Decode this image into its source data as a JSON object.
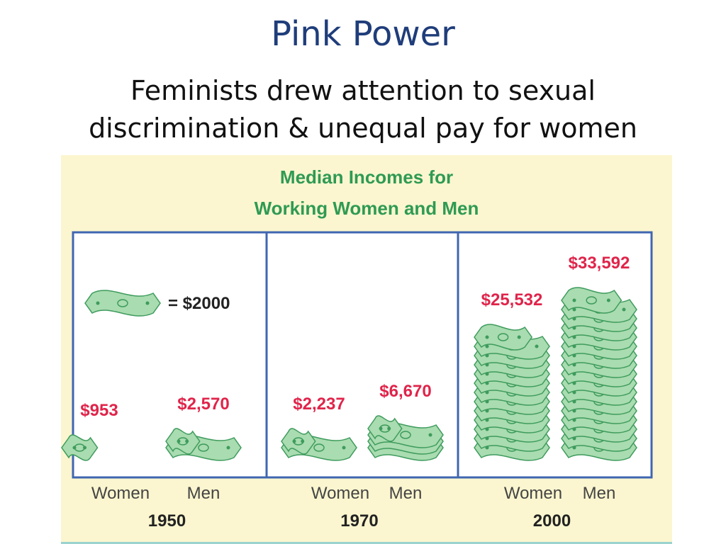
{
  "slide": {
    "title": "Pink Power",
    "subtitle_line1": "Feminists drew attention to sexual",
    "subtitle_line2": "discrimination & unequal pay for women"
  },
  "colors": {
    "title": "#1f3d7a",
    "chart_title": "#2f9a54",
    "value_label": "#e0244a",
    "bill_fill": "#a9dcb0",
    "bill_stroke": "#3e9b5d",
    "frame": "#3f66b1",
    "panel": "#fbf6cf"
  },
  "legend": {
    "icon": "dollar-bill-icon",
    "text": "= $2000",
    "unit_value": 2000
  },
  "chart_data": {
    "type": "bar",
    "title_line1": "Median Incomes for",
    "title_line2": "Working Women and Men",
    "groups": [
      {
        "year": "1950",
        "bars": [
          {
            "category": "Women",
            "value": 953,
            "label": "$953"
          },
          {
            "category": "Men",
            "value": 2570,
            "label": "$2,570"
          }
        ]
      },
      {
        "year": "1970",
        "bars": [
          {
            "category": "Women",
            "value": 2237,
            "label": "$2,237"
          },
          {
            "category": "Men",
            "value": 6670,
            "label": "$6,670"
          }
        ]
      },
      {
        "year": "2000",
        "bars": [
          {
            "category": "Women",
            "value": 25532,
            "label": "$25,532"
          },
          {
            "category": "Men",
            "value": 33592,
            "label": "$33,592"
          }
        ]
      }
    ]
  }
}
